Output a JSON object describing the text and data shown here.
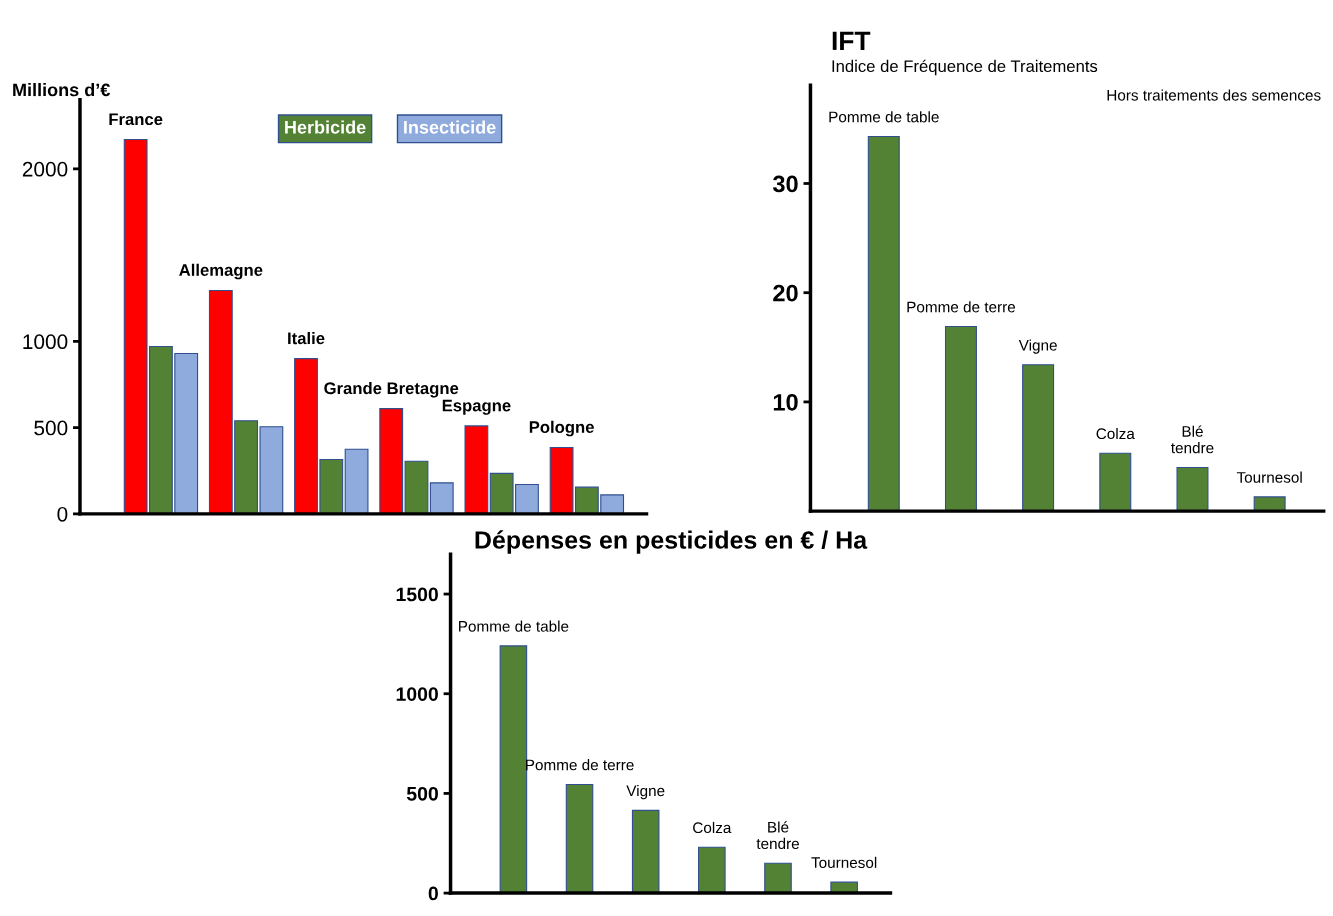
{
  "chart_data": [
    {
      "type": "bar",
      "ylabel": "Millions d’€",
      "categories": [
        "France",
        "Allemagne",
        "Italie",
        "Grande Bretagne",
        "Espagne",
        "Pologne"
      ],
      "series": [
        {
          "color": "#ff0000",
          "values": [
            2170,
            1295,
            900,
            610,
            510,
            385
          ]
        },
        {
          "name": "Herbicide",
          "color": "#548235",
          "values": [
            970,
            540,
            315,
            305,
            235,
            155
          ]
        },
        {
          "name": "Insecticide",
          "color": "#8faadc",
          "values": [
            930,
            505,
            375,
            180,
            170,
            110
          ]
        }
      ],
      "ylim": [
        0,
        2400
      ],
      "yticks": [
        0,
        500,
        1000,
        2000
      ],
      "tick_labels": "y",
      "legend": "top"
    },
    {
      "type": "bar",
      "title": "IFT",
      "subtitle": "Indice de Fréquence de Traitements",
      "categories": [
        "Pomme de table",
        "Pomme de terre",
        "Vigne",
        "Colza",
        "Blé\ntendre",
        "Tournesol"
      ],
      "series": [
        {
          "color": "#548235",
          "values": [
            34.3,
            16.9,
            13.4,
            5.3,
            4.0,
            1.3
          ]
        }
      ],
      "ylim": [
        0,
        39
      ],
      "yticks": [
        10,
        20,
        30
      ],
      "tick_labels": "y",
      "annotations": [
        "Hors traitements des semences"
      ]
    },
    {
      "type": "bar",
      "title": "Dépenses en pesticides en € / Ha",
      "categories": [
        "Pomme de table",
        "Pomme de terre",
        "Vigne",
        "Colza",
        "Blé\ntendre",
        "Tournesol"
      ],
      "series": [
        {
          "color": "#548235",
          "values": [
            1240,
            545,
            415,
            230,
            150,
            55
          ]
        }
      ],
      "ylim": [
        0,
        1700
      ],
      "yticks": [
        0,
        500,
        1000,
        1500
      ],
      "tick_labels": "y"
    }
  ]
}
